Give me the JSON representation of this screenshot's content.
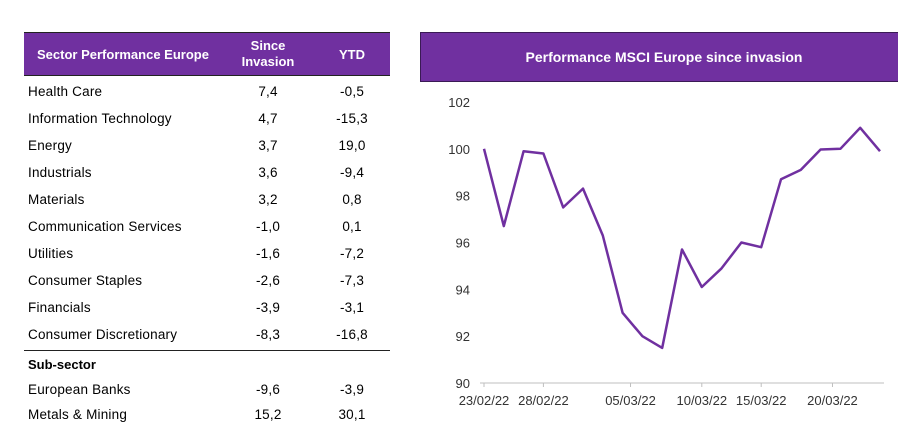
{
  "table": {
    "headers": {
      "sector": "Sector Performance Europe",
      "since_line1": "Since",
      "since_line2": "Invasion",
      "ytd": "YTD"
    },
    "rows": [
      {
        "sector": "Health Care",
        "since": "7,4",
        "ytd": "-0,5"
      },
      {
        "sector": "Information Technology",
        "since": "4,7",
        "ytd": "-15,3"
      },
      {
        "sector": "Energy",
        "since": "3,7",
        "ytd": "19,0"
      },
      {
        "sector": "Industrials",
        "since": "3,6",
        "ytd": "-9,4"
      },
      {
        "sector": "Materials",
        "since": "3,2",
        "ytd": "0,8"
      },
      {
        "sector": "Communication Services",
        "since": "-1,0",
        "ytd": "0,1"
      },
      {
        "sector": "Utilities",
        "since": "-1,6",
        "ytd": "-7,2"
      },
      {
        "sector": "Consumer Staples",
        "since": "-2,6",
        "ytd": "-7,3"
      },
      {
        "sector": "Financials",
        "since": "-3,9",
        "ytd": "-3,1"
      },
      {
        "sector": "Consumer Discretionary",
        "since": "-8,3",
        "ytd": "-16,8"
      }
    ],
    "subsector_title": "Sub-sector",
    "subsector_rows": [
      {
        "sector": "European Banks",
        "since": "-9,6",
        "ytd": "-3,9"
      },
      {
        "sector": "Metals & Mining",
        "since": "15,2",
        "ytd": "30,1"
      }
    ]
  },
  "chart_data": {
    "type": "line",
    "title": "Performance MSCI Europe since invasion",
    "ylim": [
      90,
      102
    ],
    "yticks": [
      90,
      92,
      94,
      96,
      98,
      100,
      102
    ],
    "x_tick_labels": [
      "23/02/22",
      "28/02/22",
      "05/03/22",
      "10/03/22",
      "15/03/22",
      "20/03/22"
    ],
    "x": [
      "23/02/22",
      "24/02/22",
      "25/02/22",
      "28/02/22",
      "01/03/22",
      "02/03/22",
      "03/03/22",
      "04/03/22",
      "07/03/22",
      "08/03/22",
      "09/03/22",
      "10/03/22",
      "11/03/22",
      "14/03/22",
      "15/03/22",
      "16/03/22",
      "17/03/22",
      "18/03/22",
      "21/03/22",
      "22/03/22",
      "23/03/22"
    ],
    "series": [
      {
        "values": [
          100.0,
          96.7,
          99.9,
          99.8,
          97.5,
          98.3,
          96.3,
          93.0,
          92.0,
          91.5,
          95.7,
          94.1,
          94.9,
          96.0,
          95.8,
          98.7,
          99.1,
          99.97,
          100.0,
          100.9,
          99.9
        ],
        "color": "#7030a0"
      }
    ],
    "grid": false,
    "legend": "none"
  }
}
